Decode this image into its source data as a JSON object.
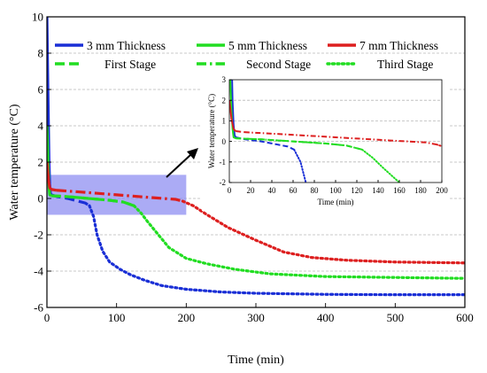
{
  "chart_data": {
    "type": "line",
    "xlabel": "Time (min)",
    "ylabel": "Water temperature (°C)",
    "xlim": [
      0,
      600
    ],
    "ylim": [
      -6,
      10
    ],
    "xticks": [
      0,
      100,
      200,
      300,
      400,
      500,
      600
    ],
    "yticks": [
      -6,
      -4,
      -2,
      0,
      2,
      4,
      6,
      8,
      10
    ],
    "grid": "horizontal dashed",
    "legend": {
      "placement": "top",
      "thickness_items": [
        {
          "label": "3 mm Thickness",
          "color": "#1a2fd6"
        },
        {
          "label": "5 mm Thickness",
          "color": "#22dd22"
        },
        {
          "label": "7 mm Thickness",
          "color": "#dd1f1f"
        }
      ],
      "stage_items": [
        {
          "label": "First Stage",
          "style": "dash"
        },
        {
          "label": "Second Stage",
          "style": "dashdot"
        },
        {
          "label": "Third Stage",
          "style": "dot"
        }
      ]
    },
    "highlight_region": {
      "x": [
        0,
        200
      ],
      "y": [
        -0.9,
        1.3
      ],
      "color": "#8f8ff2"
    },
    "series": [
      {
        "color": "#1a2fd6",
        "stages": [
          {
            "style": "solid",
            "points": [
              [
                0,
                10
              ],
              [
                1,
                7
              ],
              [
                2,
                4.5
              ],
              [
                3,
                2
              ],
              [
                4,
                0.8
              ],
              [
                5,
                0.3
              ],
              [
                6,
                0.2
              ]
            ]
          },
          {
            "style": "dash",
            "points": [
              [
                6,
                0.2
              ],
              [
                15,
                0.1
              ],
              [
                30,
                0.0
              ],
              [
                45,
                -0.15
              ],
              [
                55,
                -0.25
              ],
              [
                61,
                -0.4
              ]
            ]
          },
          {
            "style": "dot",
            "points": [
              [
                61,
                -0.4
              ],
              [
                67,
                -1.0
              ],
              [
                72,
                -2.0
              ],
              [
                80,
                -2.9
              ],
              [
                90,
                -3.5
              ],
              [
                105,
                -3.9
              ],
              [
                120,
                -4.2
              ],
              [
                140,
                -4.5
              ],
              [
                165,
                -4.8
              ],
              [
                200,
                -5.0
              ],
              [
                250,
                -5.15
              ],
              [
                300,
                -5.22
              ],
              [
                400,
                -5.28
              ],
              [
                500,
                -5.3
              ],
              [
                600,
                -5.3
              ]
            ]
          }
        ]
      },
      {
        "color": "#22dd22",
        "stages": [
          {
            "style": "solid",
            "points": [
              [
                0,
                4
              ],
              [
                1,
                2.8
              ],
              [
                2,
                1.5
              ],
              [
                3,
                0.6
              ],
              [
                4,
                0.2
              ],
              [
                6,
                0.15
              ]
            ]
          },
          {
            "style": "dash",
            "points": [
              [
                6,
                0.15
              ],
              [
                30,
                0.1
              ],
              [
                60,
                0.0
              ],
              [
                90,
                -0.1
              ],
              [
                110,
                -0.2
              ],
              [
                125,
                -0.4
              ]
            ]
          },
          {
            "style": "dashdot",
            "points": [
              [
                6,
                0.15
              ],
              [
                30,
                0.1
              ],
              [
                60,
                0.0
              ],
              [
                90,
                -0.1
              ],
              [
                110,
                -0.2
              ],
              [
                125,
                -0.4
              ]
            ]
          },
          {
            "style": "dot",
            "points": [
              [
                125,
                -0.4
              ],
              [
                135,
                -0.8
              ],
              [
                145,
                -1.3
              ],
              [
                160,
                -2.0
              ],
              [
                175,
                -2.7
              ],
              [
                200,
                -3.3
              ],
              [
                230,
                -3.6
              ],
              [
                270,
                -3.9
              ],
              [
                320,
                -4.15
              ],
              [
                400,
                -4.3
              ],
              [
                500,
                -4.35
              ],
              [
                600,
                -4.4
              ]
            ]
          }
        ]
      },
      {
        "color": "#dd1f1f",
        "stages": [
          {
            "style": "solid",
            "points": [
              [
                0,
                2
              ],
              [
                2,
                1.1
              ],
              [
                4,
                0.6
              ],
              [
                6,
                0.5
              ]
            ]
          },
          {
            "style": "dash",
            "points": [
              [
                6,
                0.5
              ],
              [
                14,
                0.45
              ]
            ]
          },
          {
            "style": "dashdot",
            "points": [
              [
                14,
                0.45
              ],
              [
                50,
                0.35
              ],
              [
                100,
                0.2
              ],
              [
                150,
                0.05
              ],
              [
                185,
                -0.05
              ],
              [
                195,
                -0.15
              ]
            ]
          },
          {
            "style": "dot",
            "points": [
              [
                195,
                -0.15
              ],
              [
                210,
                -0.4
              ],
              [
                230,
                -0.9
              ],
              [
                260,
                -1.6
              ],
              [
                300,
                -2.3
              ],
              [
                340,
                -2.95
              ],
              [
                380,
                -3.25
              ],
              [
                430,
                -3.4
              ],
              [
                500,
                -3.5
              ],
              [
                600,
                -3.55
              ]
            ]
          }
        ]
      }
    ],
    "inset": {
      "xlabel": "Time (min)",
      "ylabel": "Water temperature (°C)",
      "xlim": [
        0,
        200
      ],
      "ylim": [
        -2,
        3
      ],
      "xticks": [
        0,
        20,
        40,
        60,
        80,
        100,
        120,
        140,
        160,
        180,
        200
      ],
      "yticks": [
        -2,
        -1,
        0,
        1,
        2,
        3
      ]
    }
  }
}
